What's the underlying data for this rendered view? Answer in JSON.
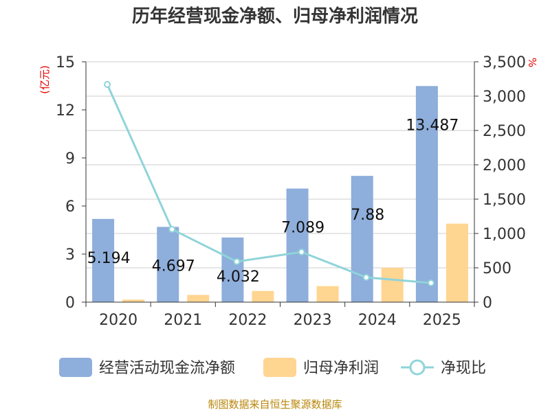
{
  "chart_data": {
    "type": "bar+line",
    "title": "历年经营现金净额、归母净利润情况",
    "categories": [
      "2020",
      "2021",
      "2022",
      "2023",
      "2024",
      "2025"
    ],
    "left_axis": {
      "unit": "(亿元)",
      "ylim": [
        0,
        15
      ],
      "ticks": [
        0,
        3,
        6,
        9,
        12,
        15
      ],
      "tick_labels": [
        "0",
        "3",
        "6",
        "9",
        "12",
        "15"
      ]
    },
    "right_axis": {
      "unit": "%",
      "ylim": [
        0,
        3500
      ],
      "ticks": [
        0,
        500,
        1000,
        1500,
        2000,
        2500,
        3000,
        3500
      ],
      "tick_labels": [
        "0",
        "500",
        "1,000",
        "1,500",
        "2,000",
        "2,500",
        "3,000",
        "3,500"
      ]
    },
    "series": [
      {
        "name": "经营活动现金流净额",
        "type": "bar",
        "axis": "left",
        "color": "#8eaedb",
        "values": [
          5.194,
          4.697,
          4.032,
          7.089,
          7.88,
          13.487
        ],
        "labels": [
          "5.194",
          "4.697",
          "4.032",
          "7.089",
          "7.88",
          "13.487"
        ]
      },
      {
        "name": "归母净利润",
        "type": "bar",
        "axis": "left",
        "color": "#ffd592",
        "values": [
          0.16,
          0.45,
          0.7,
          1.0,
          2.15,
          4.9
        ]
      },
      {
        "name": "净现比",
        "type": "line",
        "axis": "right",
        "color": "#8fd4d9",
        "values": [
          3170,
          1060,
          590,
          730,
          360,
          280
        ]
      }
    ],
    "grid": true,
    "legend_position": "bottom"
  },
  "source": "制图数据来自恒生聚源数据库"
}
